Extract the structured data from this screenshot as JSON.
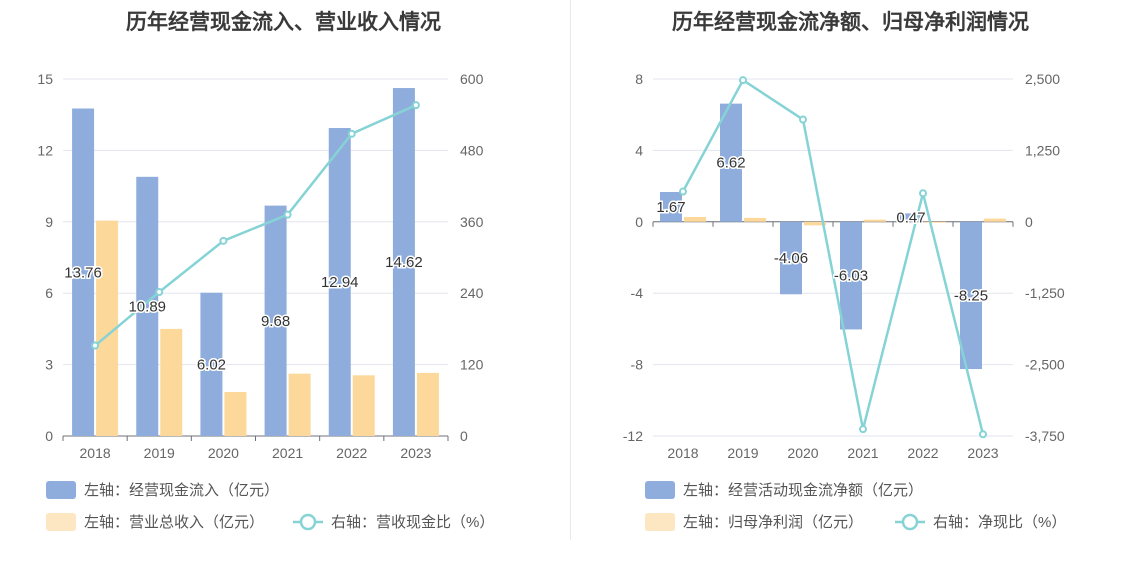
{
  "chart_data": [
    {
      "type": "bar",
      "title": "历年经营现金流入、营业收入情况",
      "categories": [
        "2018",
        "2019",
        "2020",
        "2021",
        "2022",
        "2023"
      ],
      "y_left": {
        "ylim": [
          0,
          15
        ],
        "ticks": [
          "0",
          "3",
          "6",
          "9",
          "12",
          "15"
        ]
      },
      "y_right": {
        "ylim": [
          0,
          600
        ],
        "ticks": [
          "0",
          "120",
          "240",
          "360",
          "480",
          "600"
        ]
      },
      "series": [
        {
          "name": "左轴：经营现金流入（亿元）",
          "type": "bar",
          "axis": "left",
          "color": "#8eaddc",
          "values": [
            13.76,
            10.89,
            6.02,
            9.68,
            12.94,
            14.62
          ],
          "labels": [
            "13.76",
            "10.89",
            "6.02",
            "9.68",
            "12.94",
            "14.62"
          ]
        },
        {
          "name": "左轴：营业总收入（亿元）",
          "type": "bar",
          "axis": "left",
          "color": "#fdd89b",
          "values": [
            9.05,
            4.5,
            1.85,
            2.62,
            2.55,
            2.65
          ]
        },
        {
          "name": "右轴：营收现金比（%）",
          "type": "line",
          "axis": "right",
          "color": "#86d3d6",
          "values": [
            152,
            242,
            328,
            372,
            508,
            556
          ]
        }
      ],
      "legend_position": "bottom"
    },
    {
      "type": "bar",
      "title": "历年经营现金流净额、归母净利润情况",
      "categories": [
        "2018",
        "2019",
        "2020",
        "2021",
        "2022",
        "2023"
      ],
      "y_left": {
        "ylim": [
          -12,
          8
        ],
        "ticks": [
          "-12",
          "-8",
          "-4",
          "0",
          "4",
          "8"
        ]
      },
      "y_right": {
        "ylim": [
          -3750,
          2500
        ],
        "ticks": [
          "-3,750",
          "-2,500",
          "-1,250",
          "0",
          "1,250",
          "2,500"
        ]
      },
      "series": [
        {
          "name": "左轴：经营活动现金流净额（亿元）",
          "type": "bar",
          "axis": "left",
          "color": "#8eaddc",
          "values": [
            1.67,
            6.62,
            -4.06,
            -6.03,
            0.47,
            -8.25
          ],
          "labels": [
            "1.67",
            "6.62",
            "-4.06",
            "-6.03",
            "0.47",
            "-8.25"
          ]
        },
        {
          "name": "左轴：归母净利润（亿元）",
          "type": "bar",
          "axis": "left",
          "color": "#fdd89b",
          "values": [
            0.27,
            0.22,
            -0.2,
            0.12,
            -0.05,
            0.18
          ]
        },
        {
          "name": "右轴：净现比（%）",
          "type": "line",
          "axis": "right",
          "color": "#86d3d6",
          "values": [
            530,
            2480,
            1790,
            -3630,
            500,
            -3720
          ]
        }
      ],
      "legend_position": "bottom"
    }
  ]
}
